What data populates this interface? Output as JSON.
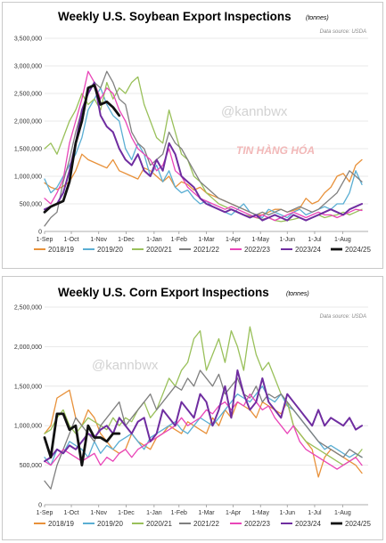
{
  "chart_data": [
    {
      "type": "line",
      "title": "Weekly U.S. Soybean Export Inspections",
      "unit_note": "(tonnes)",
      "source_note": "Data source: USDA",
      "watermark": "@kannbwx",
      "logo_text": "TIN HÀNG HÓA",
      "ylim": [
        0,
        3500000
      ],
      "yticks": [
        0,
        500000,
        1000000,
        1500000,
        2000000,
        2500000,
        3000000,
        3500000
      ],
      "ytick_labels": [
        "0",
        "500,000",
        "1,000,000",
        "1,500,000",
        "2,000,000",
        "2,500,000",
        "3,000,000",
        "3,500,000"
      ],
      "xlim": [
        0,
        52
      ],
      "xticks": [
        0,
        4.3,
        8.7,
        13.1,
        17.6,
        21.6,
        26,
        30.3,
        34.7,
        39,
        43.4,
        47.9
      ],
      "xtick_labels": [
        "1-Sep",
        "1-Oct",
        "1-Nov",
        "1-Dec",
        "1-Jan",
        "1-Feb",
        "1-Mar",
        "1-Apr",
        "1-May",
        "1-Jun",
        "1-Jul",
        "1-Aug"
      ],
      "grid": "horizontal",
      "legend": "bottom",
      "series": [
        {
          "name": "2018/19",
          "color": "#e8913a",
          "width": 1.3,
          "values": [
            880000,
            800000,
            760000,
            820000,
            900000,
            1100000,
            1400000,
            1300000,
            1250000,
            1200000,
            1150000,
            1300000,
            1100000,
            1050000,
            1000000,
            950000,
            1150000,
            1100000,
            1000000,
            900000,
            1000000,
            800000,
            900000,
            850000,
            750000,
            800000,
            700000,
            650000,
            600000,
            550000,
            500000,
            450000,
            400000,
            350000,
            300000,
            300000,
            350000,
            400000,
            400000,
            350000,
            380000,
            420000,
            600000,
            500000,
            550000,
            700000,
            800000,
            1000000,
            1050000,
            900000,
            1200000,
            1300000
          ]
        },
        {
          "name": "2019/20",
          "color": "#5aaed3",
          "width": 1.3,
          "values": [
            950000,
            700000,
            800000,
            1000000,
            1200000,
            1400000,
            1700000,
            2200000,
            2400000,
            2600000,
            2300000,
            2100000,
            2000000,
            1500000,
            1300000,
            1600000,
            1400000,
            1000000,
            1200000,
            900000,
            1100000,
            800000,
            700000,
            750000,
            600000,
            500000,
            550000,
            450000,
            400000,
            350000,
            300000,
            400000,
            500000,
            350000,
            300000,
            250000,
            400000,
            350000,
            300000,
            250000,
            350000,
            400000,
            300000,
            350000,
            400000,
            450000,
            400000,
            500000,
            500000,
            700000,
            1100000,
            850000
          ]
        },
        {
          "name": "2020/21",
          "color": "#99c05a",
          "width": 1.3,
          "values": [
            1500000,
            1600000,
            1400000,
            1700000,
            2000000,
            2200000,
            2500000,
            2300000,
            2400000,
            2200000,
            2700000,
            2400000,
            2600000,
            2500000,
            2700000,
            2800000,
            2300000,
            2000000,
            1700000,
            1600000,
            2200000,
            1800000,
            1400000,
            1300000,
            1000000,
            900000,
            700000,
            600000,
            500000,
            450000,
            400000,
            350000,
            300000,
            280000,
            250000,
            220000,
            250000,
            200000,
            180000,
            200000,
            220000,
            250000,
            200000,
            250000,
            300000,
            250000,
            280000,
            300000,
            350000,
            300000,
            350000,
            400000
          ]
        },
        {
          "name": "2021/22",
          "color": "#7f7f7f",
          "width": 1.3,
          "values": [
            100000,
            250000,
            350000,
            900000,
            1300000,
            1800000,
            2200000,
            2500000,
            2700000,
            2600000,
            2900000,
            2700000,
            2400000,
            2300000,
            1800000,
            1600000,
            1500000,
            1200000,
            1300000,
            1400000,
            1800000,
            1600000,
            1500000,
            1300000,
            1100000,
            900000,
            800000,
            700000,
            600000,
            550000,
            500000,
            450000,
            400000,
            350000,
            300000,
            350000,
            300000,
            350000,
            400000,
            350000,
            400000,
            450000,
            400000,
            350000,
            400000,
            500000,
            600000,
            700000,
            900000,
            1100000,
            1000000,
            900000
          ]
        },
        {
          "name": "2022/23",
          "color": "#e945b8",
          "width": 1.3,
          "values": [
            600000,
            500000,
            700000,
            950000,
            1600000,
            2000000,
            2400000,
            2900000,
            2700000,
            2400000,
            2600000,
            2500000,
            2200000,
            2000000,
            1700000,
            1500000,
            1400000,
            1300000,
            1100000,
            1200000,
            1500000,
            1100000,
            1000000,
            800000,
            700000,
            600000,
            550000,
            500000,
            450000,
            400000,
            450000,
            400000,
            350000,
            300000,
            250000,
            300000,
            250000,
            200000,
            250000,
            300000,
            350000,
            300000,
            250000,
            300000,
            350000,
            300000,
            300000,
            250000,
            300000,
            350000,
            400000,
            380000
          ]
        },
        {
          "name": "2023/24",
          "color": "#6f2da0",
          "width": 2,
          "values": [
            400000,
            450000,
            500000,
            700000,
            1100000,
            1600000,
            2200000,
            2500000,
            2700000,
            2100000,
            1900000,
            1800000,
            1500000,
            1300000,
            1200000,
            1400000,
            1100000,
            1000000,
            1300000,
            1100000,
            1600000,
            1400000,
            1000000,
            900000,
            800000,
            600000,
            500000,
            450000,
            400000,
            350000,
            400000,
            350000,
            300000,
            250000,
            300000,
            200000,
            250000,
            300000,
            250000,
            200000,
            300000,
            250000,
            200000,
            250000,
            300000,
            350000,
            400000,
            350000,
            300000,
            400000,
            450000,
            500000
          ]
        },
        {
          "name": "2024/25",
          "color": "#111111",
          "width": 2.8,
          "values": [
            350000,
            450000,
            500000,
            550000,
            900000,
            1600000,
            2000000,
            2600000,
            2650000,
            2300000,
            2350000,
            2250000,
            2100000
          ]
        }
      ]
    },
    {
      "type": "line",
      "title": "Weekly U.S. Corn Export Inspections",
      "unit_note": "(tonnes)",
      "source_note": "Data source: USDA",
      "watermark": "@kannbwx",
      "ylim": [
        0,
        2500000
      ],
      "yticks": [
        0,
        500000,
        1000000,
        1500000,
        2000000,
        2500000
      ],
      "ytick_labels": [
        "0",
        "500,000",
        "1,000,000",
        "1,500,000",
        "2,000,000",
        "2,500,000"
      ],
      "xlim": [
        0,
        52
      ],
      "xticks": [
        0,
        4.3,
        8.7,
        13.1,
        17.6,
        21.6,
        26,
        30.3,
        34.7,
        39,
        43.4,
        47.9
      ],
      "xtick_labels": [
        "1-Sep",
        "1-Oct",
        "1-Nov",
        "1-Dec",
        "1-Jan",
        "1-Feb",
        "1-Mar",
        "1-Apr",
        "1-May",
        "1-Jun",
        "1-Jul",
        "1-Aug"
      ],
      "grid": "horizontal",
      "legend": "bottom",
      "series": [
        {
          "name": "2018/19",
          "color": "#e8913a",
          "width": 1.3,
          "values": [
            900000,
            1000000,
            1350000,
            1400000,
            1450000,
            1100000,
            1000000,
            1200000,
            1100000,
            900000,
            800000,
            700000,
            650000,
            700000,
            900000,
            800000,
            750000,
            700000,
            850000,
            900000,
            1000000,
            950000,
            900000,
            1050000,
            1000000,
            950000,
            900000,
            1100000,
            1000000,
            1200000,
            1100000,
            1300000,
            1250000,
            1200000,
            1100000,
            1300000,
            1250000,
            1200000,
            1150000,
            1300000,
            1000000,
            900000,
            800000,
            700000,
            350000,
            600000,
            700000,
            650000,
            600000,
            550000,
            500000,
            400000
          ]
        },
        {
          "name": "2019/20",
          "color": "#5aaed3",
          "width": 1.3,
          "values": [
            600000,
            500000,
            700000,
            650000,
            800000,
            750000,
            700000,
            600000,
            800000,
            650000,
            750000,
            700000,
            800000,
            850000,
            900000,
            800000,
            700000,
            850000,
            900000,
            950000,
            1000000,
            1050000,
            950000,
            900000,
            1000000,
            1100000,
            1050000,
            1000000,
            1100000,
            1200000,
            1300000,
            1400000,
            1350000,
            1300000,
            1400000,
            1500000,
            1350000,
            1300000,
            1400000,
            1250000,
            1200000,
            1100000,
            1000000,
            900000,
            800000,
            700000,
            750000,
            700000,
            650000,
            600000,
            650000,
            600000
          ]
        },
        {
          "name": "2020/21",
          "color": "#99c05a",
          "width": 1.3,
          "values": [
            900000,
            950000,
            1100000,
            1200000,
            1000000,
            900000,
            1000000,
            1100000,
            1050000,
            1000000,
            950000,
            1100000,
            1000000,
            1100000,
            1050000,
            1200000,
            1300000,
            1100000,
            1200000,
            1400000,
            1600000,
            1500000,
            1700000,
            1800000,
            2100000,
            2200000,
            1700000,
            1900000,
            2100000,
            1800000,
            2200000,
            2000000,
            1700000,
            2250000,
            1900000,
            1700000,
            1800000,
            1600000,
            1400000,
            1300000,
            1000000,
            900000,
            800000,
            750000,
            700000,
            650000,
            600000,
            550000,
            500000,
            550000,
            600000,
            700000
          ]
        },
        {
          "name": "2021/22",
          "color": "#7f7f7f",
          "width": 1.3,
          "values": [
            300000,
            200000,
            500000,
            700000,
            900000,
            1100000,
            1000000,
            900000,
            800000,
            1000000,
            1100000,
            1200000,
            1300000,
            1000000,
            1100000,
            1200000,
            1300000,
            1400000,
            1200000,
            1300000,
            1400000,
            1500000,
            1450000,
            1600000,
            1500000,
            1700000,
            1600000,
            1500000,
            1650000,
            1400000,
            1500000,
            1600000,
            1400000,
            1350000,
            1500000,
            1300000,
            1400000,
            1350000,
            1400000,
            1300000,
            1200000,
            1100000,
            1000000,
            900000,
            800000,
            750000,
            700000,
            650000,
            600000,
            700000,
            650000,
            600000
          ]
        },
        {
          "name": "2022/23",
          "color": "#e945b8",
          "width": 1.3,
          "values": [
            550000,
            500000,
            600000,
            700000,
            650000,
            600000,
            550000,
            600000,
            650000,
            500000,
            600000,
            550000,
            650000,
            700000,
            600000,
            700000,
            750000,
            800000,
            850000,
            900000,
            950000,
            1000000,
            1100000,
            1000000,
            1050000,
            1100000,
            1200000,
            1150000,
            1250000,
            1300000,
            1200000,
            1300000,
            1250000,
            1400000,
            1300000,
            1200000,
            1250000,
            1100000,
            1000000,
            900000,
            1000000,
            800000,
            700000,
            650000,
            600000,
            550000,
            500000,
            450000,
            500000,
            550000,
            600000,
            500000
          ]
        },
        {
          "name": "2023/24",
          "color": "#6f2da0",
          "width": 2,
          "values": [
            550000,
            600000,
            700000,
            650000,
            750000,
            700000,
            800000,
            900000,
            850000,
            950000,
            1000000,
            900000,
            1100000,
            1000000,
            900000,
            1050000,
            1100000,
            800000,
            900000,
            1200000,
            1100000,
            1000000,
            1300000,
            1200000,
            1100000,
            1400000,
            1300000,
            1000000,
            1200000,
            1500000,
            1100000,
            1700000,
            1400000,
            1200000,
            1300000,
            1600000,
            1300000,
            1200000,
            1100000,
            1400000,
            1300000,
            1200000,
            1100000,
            1000000,
            1200000,
            1000000,
            1100000,
            1050000,
            1000000,
            1100000,
            950000,
            1000000
          ]
        },
        {
          "name": "2024/25",
          "color": "#111111",
          "width": 2.8,
          "values": [
            850000,
            600000,
            1150000,
            1150000,
            950000,
            1000000,
            500000,
            1000000,
            850000,
            850000,
            800000,
            900000,
            900000
          ]
        }
      ]
    }
  ]
}
